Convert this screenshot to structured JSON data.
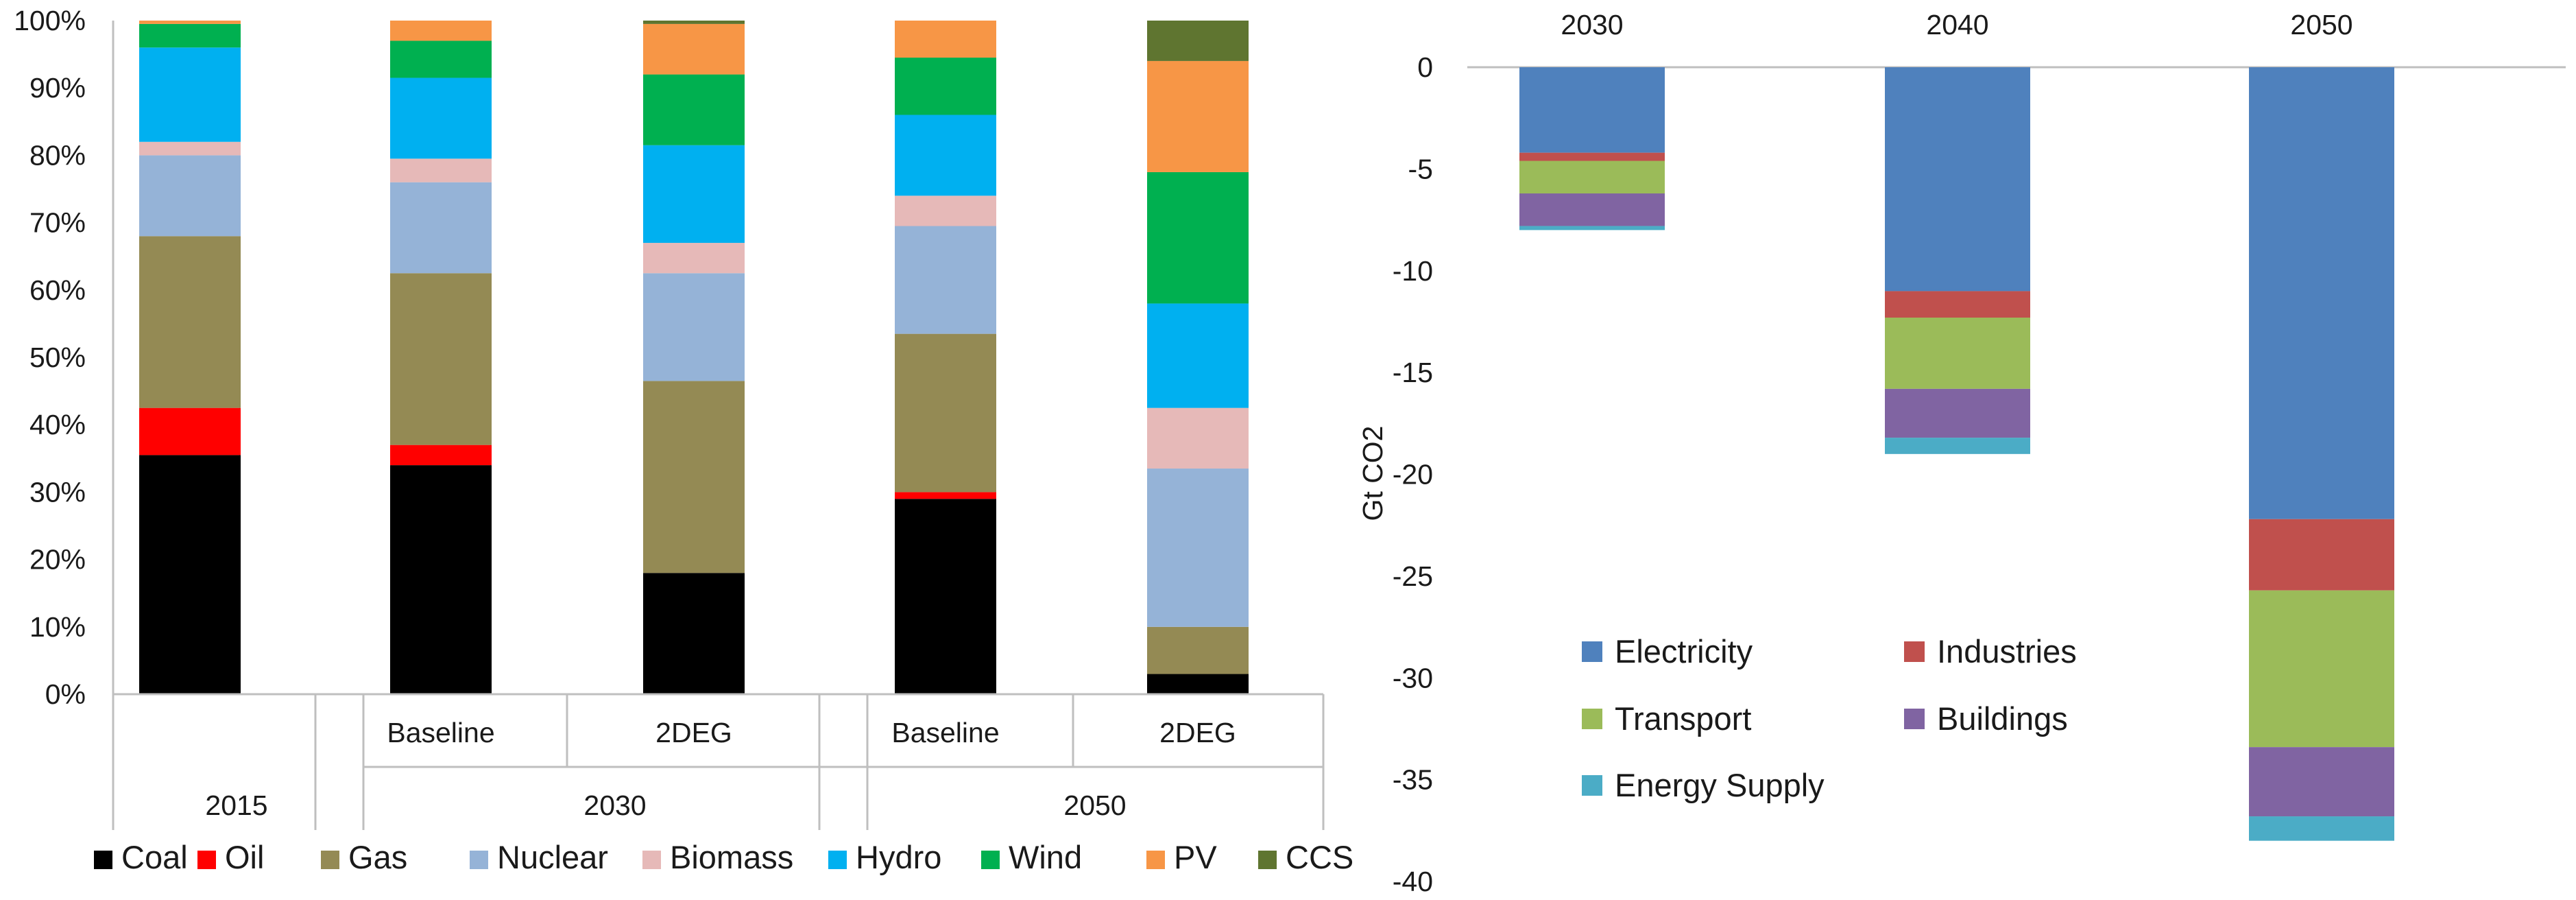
{
  "chart_data": [
    {
      "type": "bar",
      "stacked": true,
      "stacked_100": true,
      "title": "",
      "xlabel": "",
      "ylabel": "",
      "ylim": [
        0,
        100
      ],
      "y_ticks": [
        "0%",
        "10%",
        "20%",
        "30%",
        "40%",
        "50%",
        "60%",
        "70%",
        "80%",
        "90%",
        "100%"
      ],
      "categories": [
        {
          "scenario": "",
          "year": "2015"
        },
        {
          "scenario": "Baseline",
          "year": "2030"
        },
        {
          "scenario": "2DEG",
          "year": "2030"
        },
        {
          "scenario": "Baseline",
          "year": "2050"
        },
        {
          "scenario": "2DEG",
          "year": "2050"
        }
      ],
      "group_labels": [
        "2015",
        "2030",
        "2050"
      ],
      "series": [
        {
          "name": "Coal",
          "color": "#000000",
          "values": [
            35.5,
            34.0,
            18.0,
            29.0,
            3.0
          ]
        },
        {
          "name": "Oil",
          "color": "#ff0000",
          "values": [
            7.0,
            3.0,
            0.0,
            1.0,
            0.0
          ]
        },
        {
          "name": "Gas",
          "color": "#948a54",
          "values": [
            25.5,
            25.5,
            28.5,
            23.5,
            7.0
          ]
        },
        {
          "name": "Nuclear",
          "color": "#95b3d7",
          "values": [
            12.0,
            13.5,
            16.0,
            16.0,
            23.5
          ]
        },
        {
          "name": "Biomass",
          "color": "#e6b9b8",
          "values": [
            2.0,
            3.5,
            4.5,
            4.5,
            9.0
          ]
        },
        {
          "name": "Hydro",
          "color": "#00b0f0",
          "values": [
            14.0,
            12.0,
            14.5,
            12.0,
            15.5
          ]
        },
        {
          "name": "Wind",
          "color": "#00b050",
          "values": [
            3.5,
            5.5,
            10.5,
            8.5,
            19.5
          ]
        },
        {
          "name": "PV",
          "color": "#f79646",
          "values": [
            0.5,
            3.0,
            7.5,
            5.5,
            16.5
          ]
        },
        {
          "name": "CCS",
          "color": "#5f7530",
          "values": [
            0.0,
            0.0,
            0.5,
            0.0,
            6.0
          ]
        }
      ],
      "legend_position": "bottom"
    },
    {
      "type": "bar",
      "stacked": true,
      "title": "",
      "xlabel": "",
      "ylabel": "Gt CO2",
      "ylim": [
        -40,
        0
      ],
      "y_ticks": [
        0,
        -5,
        -10,
        -15,
        -20,
        -25,
        -30,
        -35,
        -40
      ],
      "x_axis_position": "top",
      "categories": [
        "2030",
        "2040",
        "2050"
      ],
      "series": [
        {
          "name": "Electricity",
          "color": "#4f81bd",
          "values": [
            -4.2,
            -11.0,
            -22.2
          ]
        },
        {
          "name": "Industries",
          "color": "#c0504d",
          "values": [
            -0.4,
            -1.3,
            -3.5
          ]
        },
        {
          "name": "Transport",
          "color": "#9bbb59",
          "values": [
            -1.6,
            -3.5,
            -7.7
          ]
        },
        {
          "name": "Buildings",
          "color": "#8064a2",
          "values": [
            -1.6,
            -2.4,
            -3.4
          ]
        },
        {
          "name": "Energy Supply",
          "color": "#4bacc6",
          "values": [
            -0.2,
            -0.8,
            -1.2
          ]
        }
      ],
      "legend_position": "lower-left"
    }
  ]
}
